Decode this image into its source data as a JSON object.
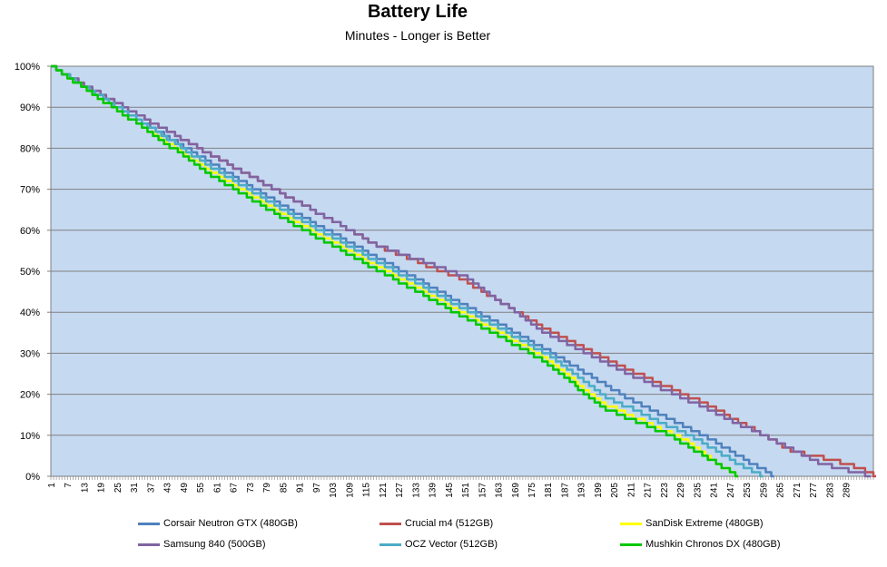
{
  "chart_data": {
    "type": "line",
    "title": "Battery Life",
    "subtitle": "Minutes - Longer is Better",
    "xlabel": "",
    "ylabel": "",
    "ylim": [
      0,
      100
    ],
    "y_ticks": [
      "0%",
      "10%",
      "20%",
      "30%",
      "40%",
      "50%",
      "60%",
      "70%",
      "80%",
      "90%",
      "100%"
    ],
    "x_ticks": [
      "1",
      "7",
      "13",
      "19",
      "25",
      "31",
      "37",
      "43",
      "49",
      "55",
      "61",
      "67",
      "73",
      "79",
      "85",
      "91",
      "97",
      "103",
      "109",
      "115",
      "121",
      "127",
      "133",
      "139",
      "145",
      "151",
      "157",
      "163",
      "169",
      "175",
      "181",
      "187",
      "193",
      "199",
      "205",
      "211",
      "217",
      "223",
      "229",
      "235",
      "241",
      "247",
      "253",
      "259",
      "265",
      "271",
      "277",
      "283",
      "289"
    ],
    "x_range": [
      1,
      299
    ],
    "grid": "horizontal",
    "legend_position": "bottom",
    "background": "#c5d9f1",
    "series": [
      {
        "name": "Corsair Neutron GTX (480GB)",
        "color": "#4f81bd",
        "end_minute": 263,
        "points": [
          [
            1,
            100
          ],
          [
            30,
            88
          ],
          [
            60,
            76
          ],
          [
            90,
            64
          ],
          [
            120,
            53
          ],
          [
            150,
            42
          ],
          [
            180,
            31
          ],
          [
            210,
            19
          ],
          [
            240,
            9
          ],
          [
            255,
            3
          ],
          [
            263,
            0
          ]
        ]
      },
      {
        "name": "Crucial m4 (512GB)",
        "color": "#c0504d",
        "end_minute": 300,
        "points": [
          [
            1,
            100
          ],
          [
            30,
            89
          ],
          [
            60,
            78
          ],
          [
            90,
            67
          ],
          [
            120,
            56
          ],
          [
            150,
            48
          ],
          [
            180,
            36
          ],
          [
            210,
            26
          ],
          [
            240,
            17
          ],
          [
            270,
            6
          ],
          [
            290,
            3
          ],
          [
            300,
            0
          ]
        ]
      },
      {
        "name": "SanDisk Extreme (480GB)",
        "color": "#ffff00",
        "end_minute": 250,
        "points": [
          [
            1,
            100
          ],
          [
            30,
            87
          ],
          [
            60,
            74
          ],
          [
            90,
            62
          ],
          [
            120,
            51
          ],
          [
            150,
            40
          ],
          [
            180,
            29
          ],
          [
            200,
            18
          ],
          [
            230,
            9
          ],
          [
            245,
            2
          ],
          [
            250,
            0
          ]
        ]
      },
      {
        "name": "Samsung 840 (500GB)",
        "color": "#8064a2",
        "end_minute": 298,
        "points": [
          [
            1,
            100
          ],
          [
            30,
            89
          ],
          [
            60,
            78
          ],
          [
            90,
            67
          ],
          [
            120,
            56
          ],
          [
            150,
            49
          ],
          [
            180,
            35
          ],
          [
            210,
            25
          ],
          [
            240,
            16
          ],
          [
            265,
            8
          ],
          [
            280,
            3
          ],
          [
            298,
            0
          ]
        ]
      },
      {
        "name": "OCZ Vector (512GB)",
        "color": "#4bacc6",
        "end_minute": 259,
        "points": [
          [
            1,
            100
          ],
          [
            30,
            88
          ],
          [
            60,
            75
          ],
          [
            90,
            63
          ],
          [
            120,
            52
          ],
          [
            150,
            41
          ],
          [
            180,
            30
          ],
          [
            200,
            20
          ],
          [
            235,
            9
          ],
          [
            250,
            3
          ],
          [
            259,
            0
          ]
        ]
      },
      {
        "name": "Mushkin Chronos DX (480GB)",
        "color": "#00c800",
        "end_minute": 250,
        "points": [
          [
            1,
            100
          ],
          [
            30,
            87
          ],
          [
            60,
            73
          ],
          [
            90,
            61
          ],
          [
            120,
            50
          ],
          [
            150,
            39
          ],
          [
            180,
            28
          ],
          [
            200,
            17
          ],
          [
            225,
            10
          ],
          [
            240,
            4
          ],
          [
            250,
            0
          ]
        ]
      }
    ]
  }
}
